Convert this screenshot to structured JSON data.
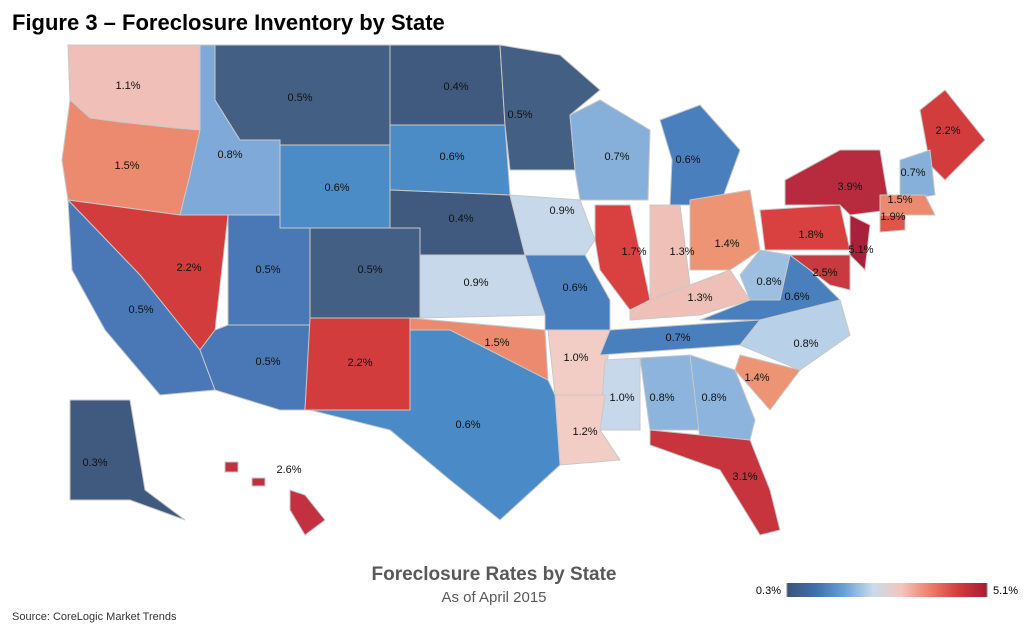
{
  "chart_data": {
    "type": "choropleth",
    "title": "Figure 3 – Foreclosure Inventory by State",
    "subtitle": "Foreclosure Rates by State",
    "date_note": "As of April 2015",
    "source": "Source: CoreLogic Market Trends",
    "values": [
      1.1,
      1.5,
      0.8,
      0.5,
      0.6,
      0.4,
      0.6,
      0.5,
      0.7,
      0.6,
      2.2,
      0.5,
      0.5,
      0.5,
      0.4,
      0.9,
      1.7,
      1.3,
      1.4,
      0.9,
      0.6,
      1.3,
      0.8,
      0.6,
      1.8,
      3.9,
      5.1,
      2.5,
      0.5,
      2.2,
      1.5,
      1.0,
      0.7,
      0.8,
      1.4,
      1.0,
      0.8,
      0.8,
      1.2,
      0.6,
      3.1,
      0.3,
      2.6,
      2.2,
      0.7,
      1.5,
      1.9
    ],
    "value_labels": [
      "1.1%",
      "1.5%",
      "0.8%",
      "0.5%",
      "0.6%",
      "0.4%",
      "0.6%",
      "0.5%",
      "0.7%",
      "0.6%",
      "2.2%",
      "0.5%",
      "0.5%",
      "0.5%",
      "0.4%",
      "0.9%",
      "1.7%",
      "1.3%",
      "1.4%",
      "0.9%",
      "0.6%",
      "1.3%",
      "0.8%",
      "0.6%",
      "1.8%",
      "3.9%",
      "5.1%",
      "2.5%",
      "0.5%",
      "2.2%",
      "1.5%",
      "1.0%",
      "0.7%",
      "0.8%",
      "1.4%",
      "1.0%",
      "0.8%",
      "0.8%",
      "1.2%",
      "0.6%",
      "3.1%",
      "0.3%",
      "2.6%",
      "2.2%",
      "0.7%",
      "1.5%",
      "1.9%"
    ],
    "colors": [
      "#efbfb8",
      "#ec8a70",
      "#7fa9d8",
      "#435f83",
      "#4b8bc6",
      "#3f5a7e",
      "#4b8bc6",
      "#435f83",
      "#86b0da",
      "#4a7fbe",
      "#d33c3d",
      "#4a77b6",
      "#4a77b6",
      "#435f83",
      "#3f5a7e",
      "#c6d8ea",
      "#d8413f",
      "#efc0b8",
      "#ec9474",
      "#c6d8ea",
      "#4a7fbe",
      "#efc0b8",
      "#9dbfe0",
      "#4a7fbe",
      "#d8413f",
      "#b82b3e",
      "#a8203a",
      "#c73a3f",
      "#4a77b6",
      "#d33c3d",
      "#ec8a70",
      "#f2cdc6",
      "#4a7fbe",
      "#b9d1e8",
      "#ec9474",
      "#c6d8ea",
      "#8db4dc",
      "#8db4dc",
      "#f2cdc6",
      "#4a8ac6",
      "#c7343d",
      "#3f5a7e",
      "#c3303f",
      "#d33c3d",
      "#86b0da",
      "#ec8a70",
      "#e0554a"
    ],
    "clim": [
      0.3,
      5.1
    ],
    "colorbar_colors": [
      "#3a5478",
      "#3f6fae",
      "#6aa0d6",
      "#c9dbec",
      "#f3c6bd",
      "#ec7f6a",
      "#d63a3c",
      "#a61c36"
    ],
    "cticks": [
      {
        "value": 0.3,
        "label": "0.3%"
      },
      {
        "value": 5.1,
        "label": "5.1%"
      }
    ]
  }
}
